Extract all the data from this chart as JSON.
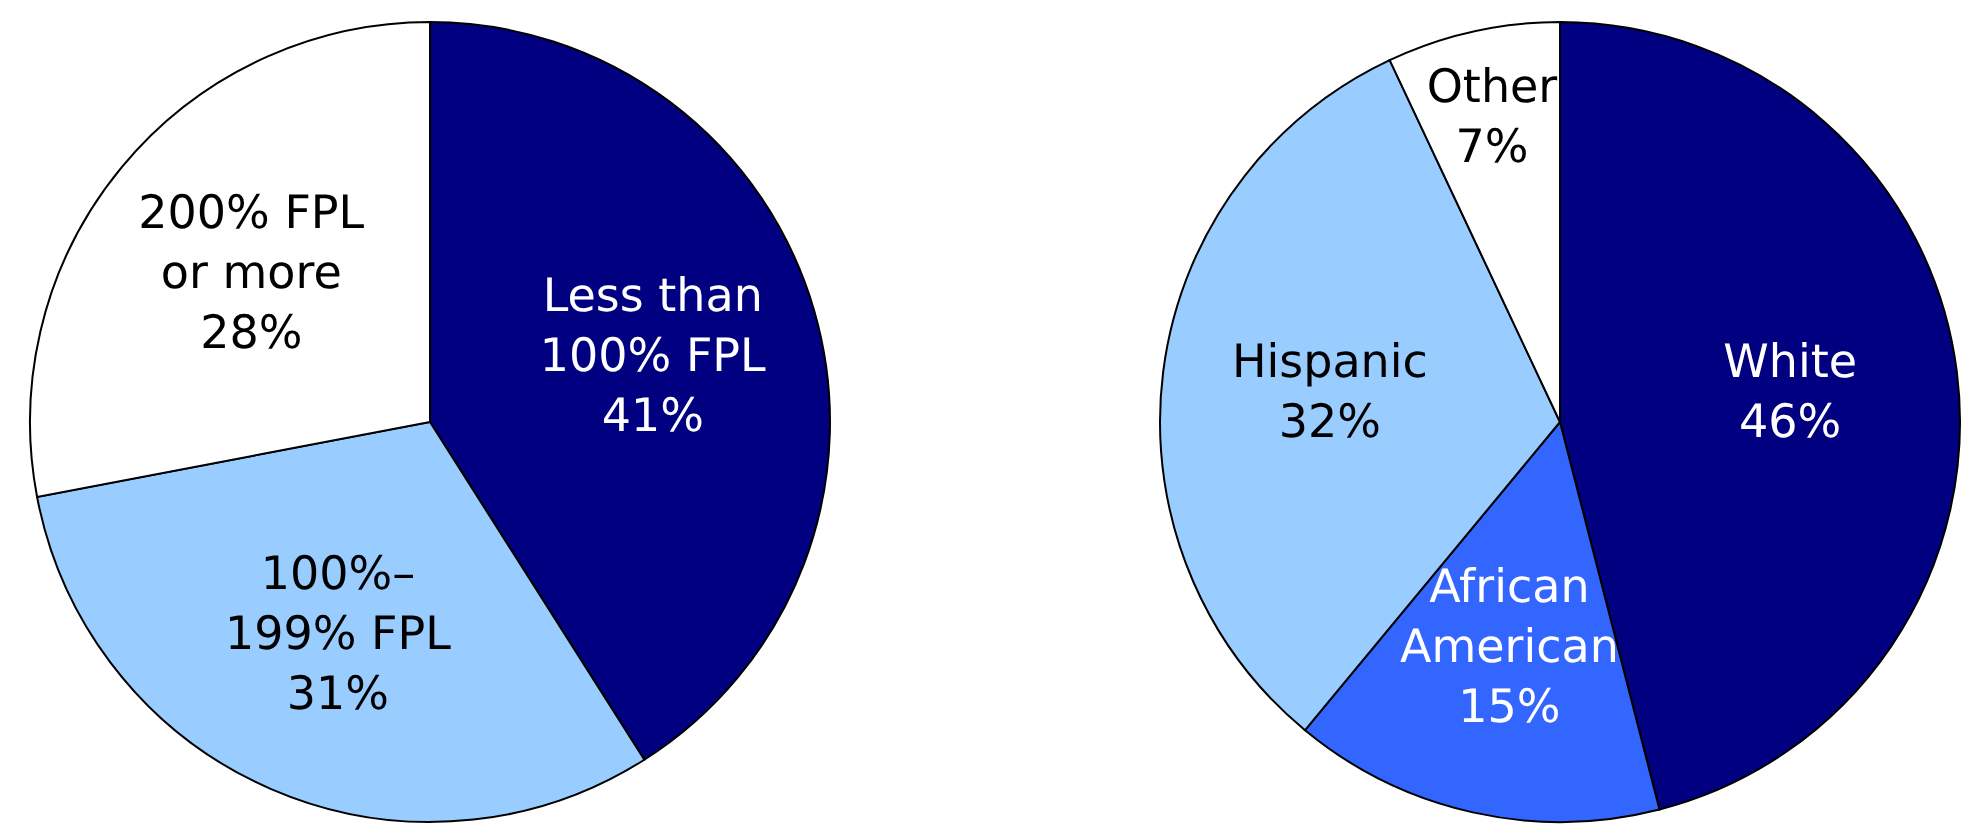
{
  "chart_data": [
    {
      "type": "pie",
      "categories": [
        "Less than\n100% FPL",
        "100%–\n199% FPL",
        "200% FPL\nor more"
      ],
      "values": [
        41,
        31,
        28
      ],
      "value_labels": [
        "41%",
        "31%",
        "28%"
      ],
      "colors": [
        "#000080",
        "#99ccff",
        "#ffffff"
      ]
    },
    {
      "type": "pie",
      "categories": [
        "White",
        "African\nAmerican",
        "Hispanic",
        "Other"
      ],
      "values": [
        46,
        15,
        32,
        7
      ],
      "value_labels": [
        "46%",
        "15%",
        "32%",
        "7%"
      ],
      "colors": [
        "#000080",
        "#3366ff",
        "#99ccff",
        "#ffffff"
      ]
    }
  ]
}
